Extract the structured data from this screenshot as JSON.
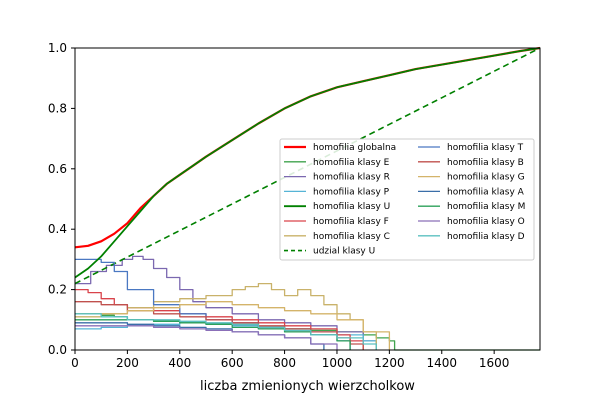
{
  "chart_data": {
    "type": "line",
    "title": "",
    "xlabel": "liczba zmienionych wierzcholkow",
    "ylabel": "",
    "xlim": [
      0,
      1775
    ],
    "ylim": [
      0,
      1.0
    ],
    "xticks": [
      0,
      200,
      400,
      600,
      800,
      1000,
      1200,
      1400,
      1600
    ],
    "yticks": [
      0.0,
      0.2,
      0.4,
      0.6,
      0.8,
      1.0
    ],
    "grid": false,
    "legend_position": "center-right",
    "series": [
      {
        "name": "homofilia globalna",
        "color": "#ff0000",
        "width": 2.2,
        "dash": "",
        "x": [
          0,
          50,
          100,
          150,
          200,
          250,
          300,
          350,
          400,
          450,
          500,
          600,
          700,
          800,
          900,
          1000,
          1100,
          1200,
          1300,
          1400,
          1500,
          1600,
          1700,
          1775
        ],
        "y": [
          0.34,
          0.345,
          0.36,
          0.385,
          0.42,
          0.47,
          0.51,
          0.55,
          0.58,
          0.61,
          0.64,
          0.695,
          0.75,
          0.8,
          0.84,
          0.87,
          0.89,
          0.91,
          0.93,
          0.945,
          0.96,
          0.975,
          0.99,
          1.0
        ]
      },
      {
        "name": "homofilia klasy E",
        "color": "#3fa34d",
        "width": 1.3,
        "dash": "",
        "x": [
          0,
          50,
          100,
          150,
          200,
          300,
          400,
          500,
          600,
          700,
          800,
          900,
          1000,
          1100,
          1150,
          1200,
          1220,
          1300,
          1400,
          1500,
          1600,
          1700,
          1775
        ],
        "y": [
          0.12,
          0.12,
          0.115,
          0.11,
          0.1,
          0.095,
          0.09,
          0.085,
          0.08,
          0.075,
          0.07,
          0.065,
          0.06,
          0.05,
          0.04,
          0.03,
          0.0,
          0.0,
          0.0,
          0.0,
          0.0,
          0.0,
          0.0
        ]
      },
      {
        "name": "homofilia klasy R",
        "color": "#7b68b0",
        "width": 1.3,
        "dash": "",
        "x": [
          0,
          60,
          120,
          180,
          220,
          260,
          300,
          350,
          400,
          450,
          500,
          600,
          700,
          800,
          900,
          1000,
          1100,
          1150
        ],
        "y": [
          0.22,
          0.26,
          0.28,
          0.3,
          0.31,
          0.3,
          0.27,
          0.24,
          0.2,
          0.16,
          0.14,
          0.12,
          0.1,
          0.09,
          0.08,
          0.06,
          0.03,
          0.0
        ]
      },
      {
        "name": "homofilia klasy P",
        "color": "#56b4d6",
        "width": 1.3,
        "dash": "",
        "x": [
          0,
          100,
          200,
          300,
          400,
          500,
          600,
          700,
          800,
          900,
          1000,
          1100,
          1150
        ],
        "y": [
          0.07,
          0.075,
          0.08,
          0.085,
          0.09,
          0.085,
          0.08,
          0.075,
          0.07,
          0.06,
          0.05,
          0.03,
          0.0
        ]
      },
      {
        "name": "homofilia klasy U",
        "color": "#008000",
        "width": 1.8,
        "dash": "",
        "x": [
          0,
          50,
          100,
          150,
          200,
          250,
          300,
          350,
          400,
          450,
          500,
          600,
          700,
          800,
          900,
          1000,
          1100,
          1200,
          1300,
          1400,
          1500,
          1600,
          1700,
          1775
        ],
        "y": [
          0.24,
          0.27,
          0.31,
          0.36,
          0.41,
          0.46,
          0.51,
          0.55,
          0.58,
          0.61,
          0.64,
          0.695,
          0.75,
          0.8,
          0.84,
          0.87,
          0.89,
          0.91,
          0.93,
          0.945,
          0.96,
          0.975,
          0.99,
          1.0
        ]
      },
      {
        "name": "homofilia klasy F",
        "color": "#d9434b",
        "width": 1.3,
        "dash": "",
        "x": [
          0,
          50,
          100,
          150,
          200,
          300,
          400,
          500,
          600,
          700,
          800,
          900,
          1000,
          1050,
          1100
        ],
        "y": [
          0.2,
          0.19,
          0.17,
          0.15,
          0.14,
          0.13,
          0.12,
          0.11,
          0.1,
          0.09,
          0.08,
          0.07,
          0.05,
          0.03,
          0.0
        ]
      },
      {
        "name": "homofilia klasy C",
        "color": "#c9b26a",
        "width": 1.3,
        "dash": "",
        "x": [
          0,
          100,
          200,
          300,
          400,
          500,
          600,
          650,
          700,
          750,
          800,
          850,
          900,
          950,
          1000,
          1050,
          1100,
          1150
        ],
        "y": [
          0.11,
          0.12,
          0.14,
          0.16,
          0.17,
          0.18,
          0.2,
          0.21,
          0.22,
          0.2,
          0.18,
          0.2,
          0.18,
          0.15,
          0.12,
          0.1,
          0.06,
          0.0
        ]
      },
      {
        "name": "udzial klasy U",
        "color": "#008000",
        "width": 1.6,
        "dash": "6,4",
        "x": [
          0,
          1775
        ],
        "y": [
          0.22,
          1.0
        ]
      },
      {
        "name": "homofilia klasy T",
        "color": "#4a78c2",
        "width": 1.3,
        "dash": "",
        "x": [
          0,
          50,
          100,
          150,
          200,
          300,
          400,
          500,
          600,
          700,
          800,
          900,
          1000,
          1050
        ],
        "y": [
          0.3,
          0.3,
          0.29,
          0.26,
          0.2,
          0.15,
          0.12,
          0.1,
          0.09,
          0.07,
          0.06,
          0.05,
          0.03,
          0.0
        ]
      },
      {
        "name": "homofilia klasy B",
        "color": "#c0504d",
        "width": 1.3,
        "dash": "",
        "x": [
          0,
          100,
          200,
          300,
          400,
          500,
          600,
          700,
          800,
          900,
          1000,
          1050,
          1100
        ],
        "y": [
          0.16,
          0.15,
          0.13,
          0.12,
          0.11,
          0.1,
          0.09,
          0.08,
          0.07,
          0.06,
          0.04,
          0.02,
          0.0
        ]
      },
      {
        "name": "homofilia klasy G",
        "color": "#d4b46a",
        "width": 1.3,
        "dash": "",
        "x": [
          0,
          100,
          200,
          300,
          400,
          500,
          600,
          700,
          800,
          900,
          1000,
          1100,
          1200
        ],
        "y": [
          0.12,
          0.12,
          0.13,
          0.14,
          0.15,
          0.16,
          0.15,
          0.14,
          0.13,
          0.12,
          0.1,
          0.06,
          0.0
        ]
      },
      {
        "name": "homofilia klasy A",
        "color": "#3a6ea8",
        "width": 1.3,
        "dash": "",
        "x": [
          0,
          100,
          200,
          300,
          400,
          500,
          600,
          700,
          800,
          900,
          950
        ],
        "y": [
          0.09,
          0.09,
          0.085,
          0.08,
          0.075,
          0.07,
          0.06,
          0.05,
          0.04,
          0.02,
          0.0
        ]
      },
      {
        "name": "homofilia klasy M",
        "color": "#2ca05a",
        "width": 1.3,
        "dash": "",
        "x": [
          0,
          100,
          200,
          300,
          400,
          500,
          600,
          700,
          800,
          900,
          1000,
          1050
        ],
        "y": [
          0.1,
          0.1,
          0.1,
          0.095,
          0.09,
          0.085,
          0.075,
          0.07,
          0.06,
          0.05,
          0.03,
          0.0
        ]
      },
      {
        "name": "homofilia klasy O",
        "color": "#8b6fb8",
        "width": 1.3,
        "dash": "",
        "x": [
          0,
          100,
          200,
          300,
          400,
          500,
          600,
          700,
          800,
          900,
          1000
        ],
        "y": [
          0.08,
          0.08,
          0.08,
          0.075,
          0.07,
          0.065,
          0.06,
          0.05,
          0.04,
          0.02,
          0.0
        ]
      },
      {
        "name": "homofilia klasy D",
        "color": "#5bc0c0",
        "width": 1.3,
        "dash": "",
        "x": [
          0,
          100,
          200,
          300,
          400,
          500,
          600,
          700,
          800,
          900,
          1000,
          1100,
          1150
        ],
        "y": [
          0.12,
          0.11,
          0.1,
          0.1,
          0.095,
          0.09,
          0.085,
          0.075,
          0.065,
          0.05,
          0.04,
          0.02,
          0.0
        ]
      }
    ]
  }
}
